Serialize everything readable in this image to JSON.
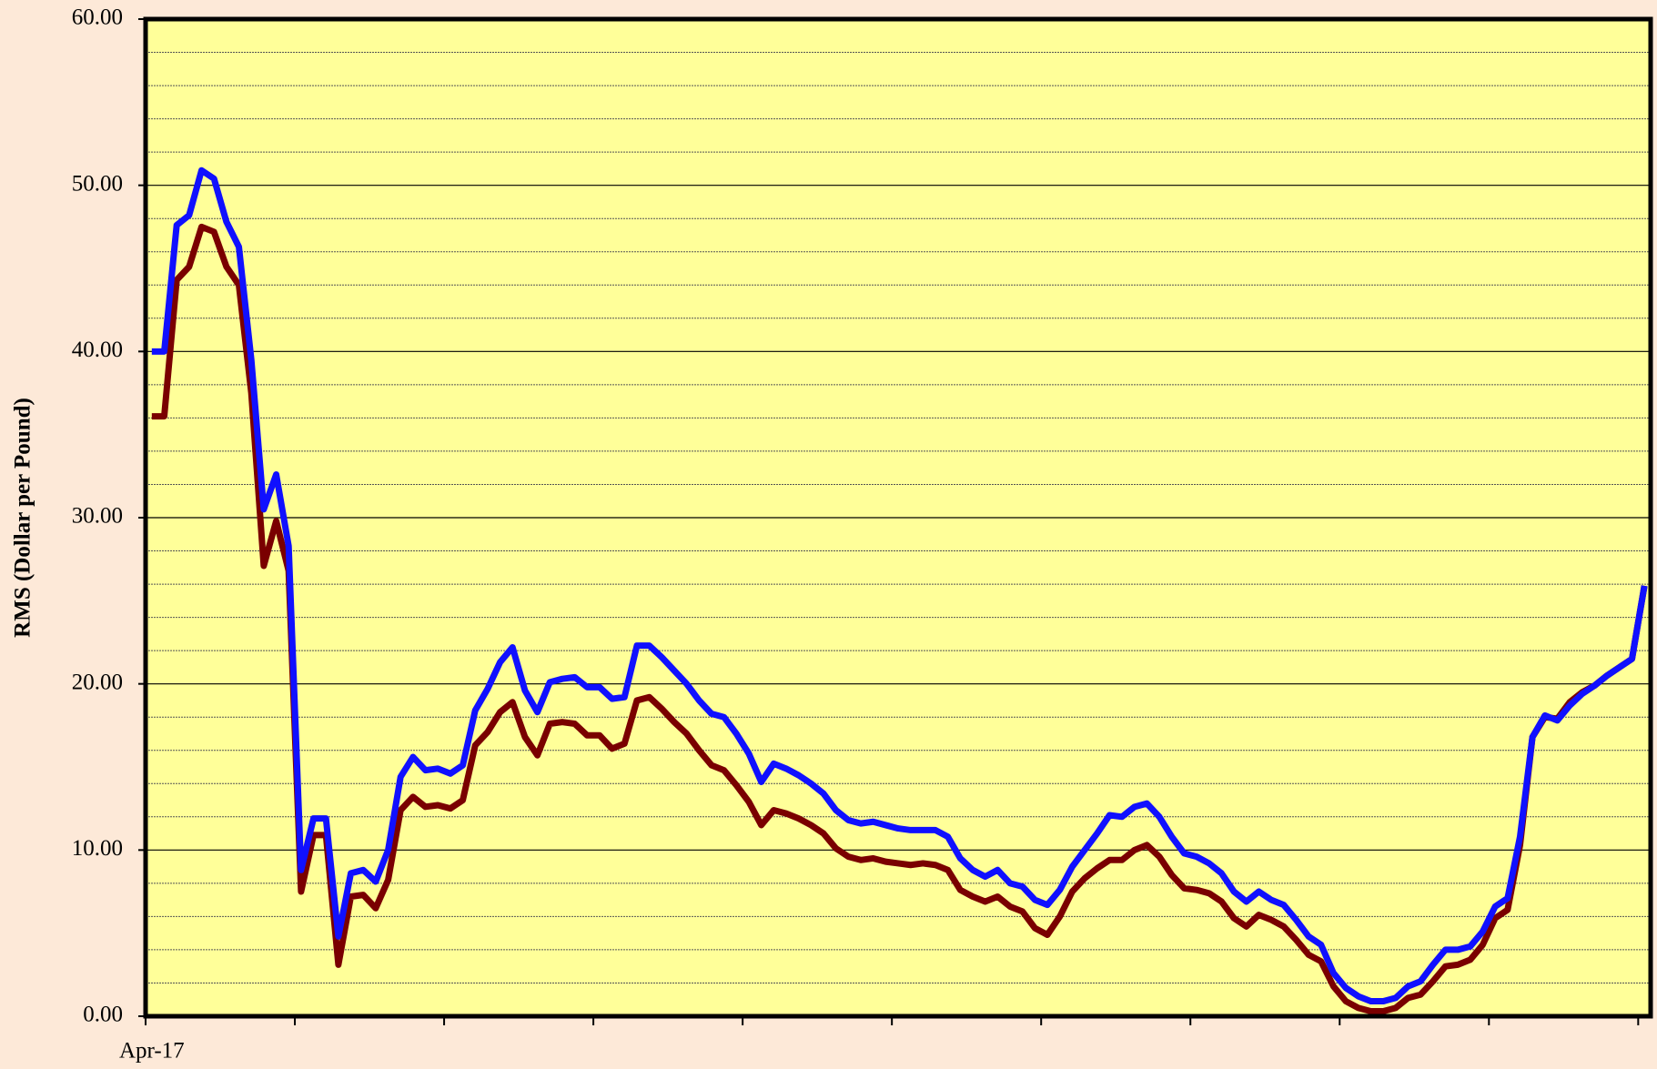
{
  "chart_data": {
    "type": "line",
    "y_label": "RMS (Dollar per Pound)",
    "categories": [
      "Apr-17",
      null,
      null,
      null,
      null,
      null,
      null,
      null,
      null,
      null,
      null,
      null,
      null,
      null,
      null,
      null,
      null,
      null,
      null,
      null,
      null,
      null,
      null,
      null,
      null,
      null,
      null,
      null,
      null,
      null,
      null,
      null,
      null,
      null,
      null,
      null,
      null,
      null,
      null,
      null,
      null,
      null,
      null,
      null,
      null,
      null,
      null,
      null,
      null,
      null,
      null,
      null,
      null,
      null,
      null,
      null,
      null,
      null,
      null,
      null,
      null,
      null,
      null,
      null,
      null,
      null,
      null,
      null,
      null,
      null,
      null,
      null,
      null,
      null,
      null,
      null,
      null,
      null,
      null,
      null,
      null,
      null,
      null,
      null,
      null,
      null,
      null,
      null,
      null,
      null,
      null,
      null,
      null,
      null,
      null,
      null,
      null,
      null,
      null,
      null,
      null,
      null,
      null,
      null,
      null,
      null,
      null,
      null,
      null,
      null,
      null,
      null,
      null,
      null,
      null,
      null,
      null,
      null,
      null,
      null,
      null
    ],
    "series": [
      {
        "color": "#7a0000",
        "values": [
          36.1,
          36.1,
          44.3,
          45.1,
          47.5,
          47.2,
          45.1,
          44.0,
          37.5,
          27.1,
          29.8,
          26.8,
          7.5,
          10.9,
          10.9,
          3.1,
          7.2,
          7.3,
          6.5,
          8.2,
          12.4,
          13.2,
          12.6,
          12.7,
          12.5,
          13.0,
          16.3,
          17.1,
          18.3,
          18.9,
          16.8,
          15.7,
          17.6,
          17.7,
          17.6,
          16.9,
          16.9,
          16.1,
          16.4,
          19.0,
          19.2,
          18.5,
          17.7,
          17.0,
          16.0,
          15.1,
          14.8,
          13.9,
          12.9,
          11.5,
          12.4,
          12.2,
          11.9,
          11.5,
          11.0,
          10.1,
          9.6,
          9.4,
          9.5,
          9.3,
          9.2,
          9.1,
          9.2,
          9.1,
          8.8,
          7.6,
          7.2,
          6.9,
          7.2,
          6.6,
          6.3,
          5.3,
          4.9,
          6.0,
          7.5,
          8.3,
          8.9,
          9.4,
          9.4,
          10.0,
          10.3,
          9.6,
          8.5,
          7.7,
          7.6,
          7.4,
          6.9,
          5.9,
          5.4,
          6.1,
          5.8,
          5.4,
          4.6,
          3.7,
          3.3,
          1.8,
          0.9,
          0.5,
          0.3,
          0.3,
          0.5,
          1.1,
          1.3,
          2.1,
          3.0,
          3.1,
          3.4,
          4.3,
          5.9,
          6.4,
          10.3,
          16.8,
          18.0,
          17.9,
          18.9,
          19.5,
          19.9,
          20.5,
          21.0,
          21.5,
          25.9
        ]
      },
      {
        "color": "#1010ff",
        "values": [
          40.0,
          40.0,
          47.6,
          48.2,
          50.9,
          50.4,
          47.8,
          46.3,
          39.5,
          30.5,
          32.6,
          28.3,
          8.8,
          11.9,
          11.9,
          4.8,
          8.6,
          8.8,
          8.1,
          10.0,
          14.4,
          15.6,
          14.8,
          14.9,
          14.6,
          15.1,
          18.4,
          19.7,
          21.3,
          22.2,
          19.6,
          18.3,
          20.1,
          20.3,
          20.4,
          19.8,
          19.8,
          19.1,
          19.2,
          22.3,
          22.3,
          21.6,
          20.8,
          20.0,
          19.0,
          18.2,
          18.0,
          17.0,
          15.8,
          14.1,
          15.2,
          14.9,
          14.5,
          14.0,
          13.4,
          12.4,
          11.8,
          11.6,
          11.7,
          11.5,
          11.3,
          11.2,
          11.2,
          11.2,
          10.8,
          9.5,
          8.8,
          8.4,
          8.8,
          8.0,
          7.8,
          7.0,
          6.7,
          7.6,
          9.0,
          10.0,
          11.0,
          12.1,
          12.0,
          12.6,
          12.8,
          12.0,
          10.8,
          9.8,
          9.6,
          9.2,
          8.6,
          7.5,
          6.9,
          7.5,
          7.0,
          6.7,
          5.8,
          4.8,
          4.3,
          2.6,
          1.7,
          1.2,
          0.9,
          0.9,
          1.1,
          1.8,
          2.1,
          3.1,
          4.0,
          4.0,
          4.2,
          5.1,
          6.6,
          7.1,
          10.8,
          16.8,
          18.1,
          17.8,
          18.7,
          19.4,
          19.9,
          20.5,
          21.0,
          21.5,
          25.9
        ]
      }
    ],
    "ylim": [
      0,
      60
    ],
    "yticks": [
      {
        "value": 0,
        "label": "0.00"
      },
      {
        "value": 10,
        "label": "10.00"
      },
      {
        "value": 20,
        "label": "20.00"
      },
      {
        "value": 30,
        "label": "30.00"
      },
      {
        "value": 40,
        "label": "40.00"
      },
      {
        "value": 50,
        "label": "50.00"
      },
      {
        "value": 60,
        "label": "60.00"
      }
    ],
    "minor_grid": [
      2,
      4,
      6,
      8,
      12,
      14,
      16,
      18,
      22,
      24,
      26,
      28,
      32,
      34,
      36,
      38,
      42,
      44,
      46,
      48,
      52,
      54,
      56,
      58
    ],
    "grid": true,
    "plot_color": "#ffff99"
  }
}
